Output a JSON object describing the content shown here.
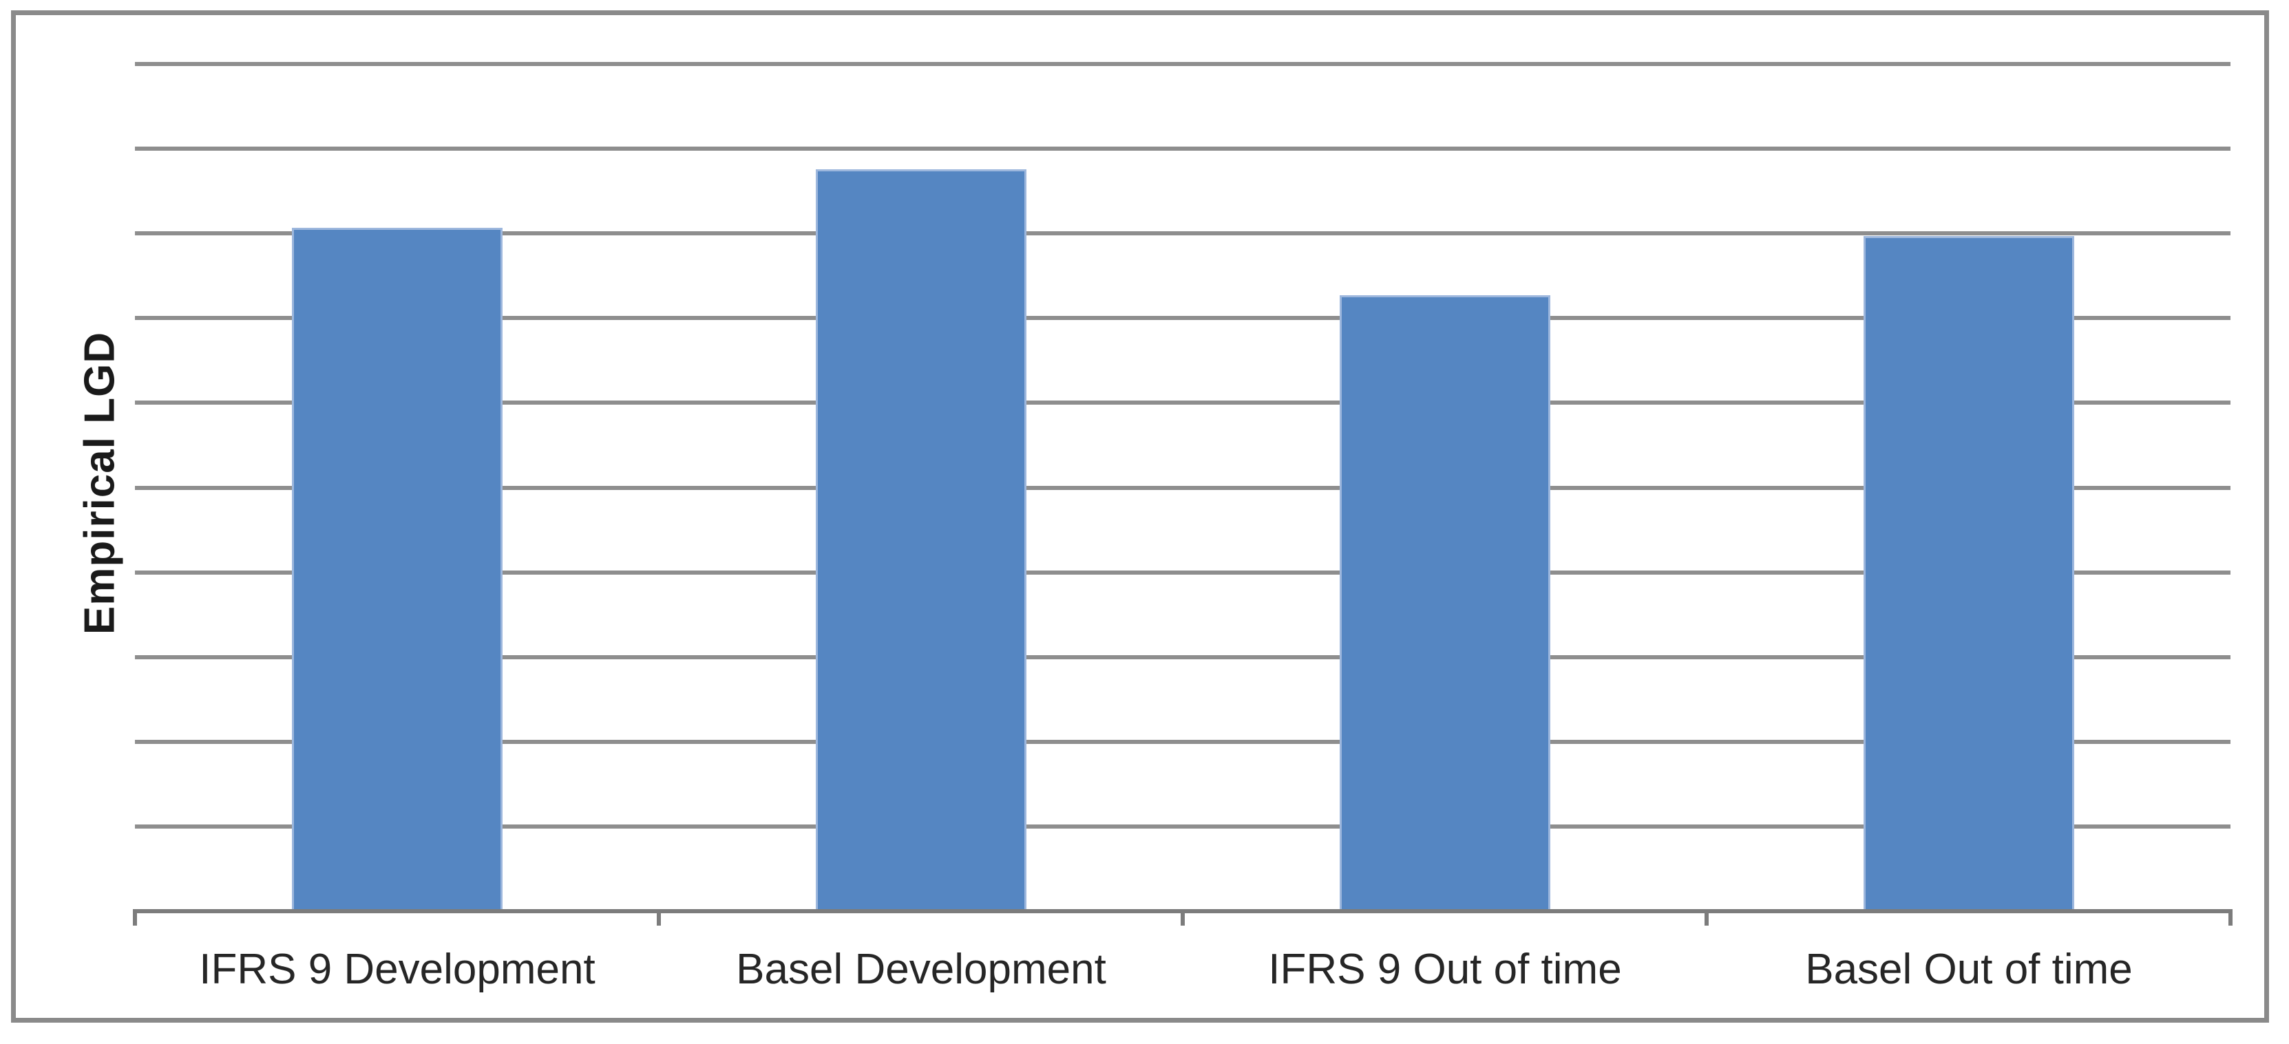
{
  "chart_data": {
    "type": "bar",
    "categories": [
      "IFRS 9 Development",
      "Basel Development",
      "IFRS 9 Out of time",
      "Basel Out of time"
    ],
    "values": [
      0.807,
      0.876,
      0.727,
      0.797
    ],
    "title": "",
    "xlabel": "",
    "ylabel": "Empirical LGD",
    "ylim": [
      0,
      1
    ],
    "y_major_step": 0.1,
    "y_tick_labels_visible": false,
    "x_tick_marks": "between-categories",
    "grid": "horizontal",
    "legend": "none",
    "colors": {
      "bar_fill": "#5586C2",
      "bar_border": "#9DB7DD",
      "gridline": "#8E8E8E",
      "axis_line": "#7C7C7C",
      "frame_border": "#8A8A8A",
      "label_text": "#262626",
      "background": "#FFFFFF"
    }
  }
}
